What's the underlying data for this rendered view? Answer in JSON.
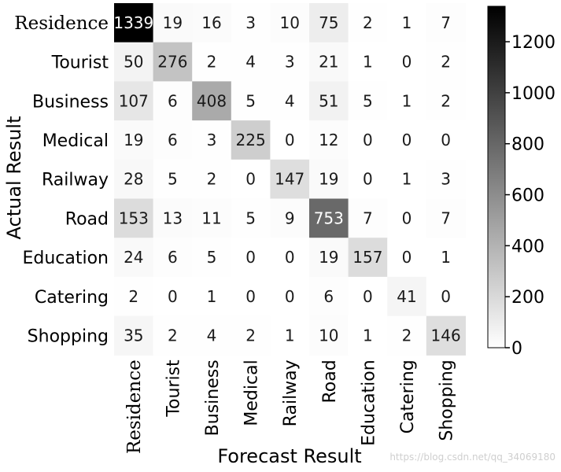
{
  "chart_data": {
    "type": "heatmap",
    "title": "",
    "xlabel": "Forecast Result",
    "ylabel": "Actual Result",
    "x_categories": [
      "Residence",
      "Tourist",
      "Business",
      "Medical",
      "Railway",
      "Road",
      "Education",
      "Catering",
      "Shopping"
    ],
    "y_categories": [
      "Residence",
      "Tourist",
      "Business",
      "Medical",
      "Railway",
      "Road",
      "Education",
      "Catering",
      "Shopping"
    ],
    "matrix": [
      [
        1339,
        19,
        16,
        3,
        10,
        75,
        2,
        1,
        7
      ],
      [
        50,
        276,
        2,
        4,
        3,
        21,
        1,
        0,
        2
      ],
      [
        107,
        6,
        408,
        5,
        4,
        51,
        5,
        1,
        2
      ],
      [
        19,
        6,
        3,
        225,
        0,
        12,
        0,
        0,
        0
      ],
      [
        28,
        5,
        2,
        0,
        147,
        19,
        0,
        1,
        3
      ],
      [
        153,
        13,
        11,
        5,
        9,
        753,
        7,
        0,
        7
      ],
      [
        24,
        6,
        5,
        0,
        0,
        19,
        157,
        0,
        1
      ],
      [
        2,
        0,
        1,
        0,
        0,
        6,
        0,
        41,
        0
      ],
      [
        35,
        2,
        4,
        2,
        1,
        10,
        1,
        2,
        146
      ]
    ],
    "colorbar": {
      "ticks": [
        0,
        200,
        400,
        600,
        800,
        1000,
        1200
      ],
      "range": [
        0,
        1339
      ],
      "colormap": "Greys",
      "low_color": "#ffffff",
      "high_color": "#000000"
    },
    "annotations": true,
    "grid": false,
    "legend": "colorbar-right"
  },
  "watermark": {
    "text": "https://blog.csdn.net/qq_34069180"
  }
}
